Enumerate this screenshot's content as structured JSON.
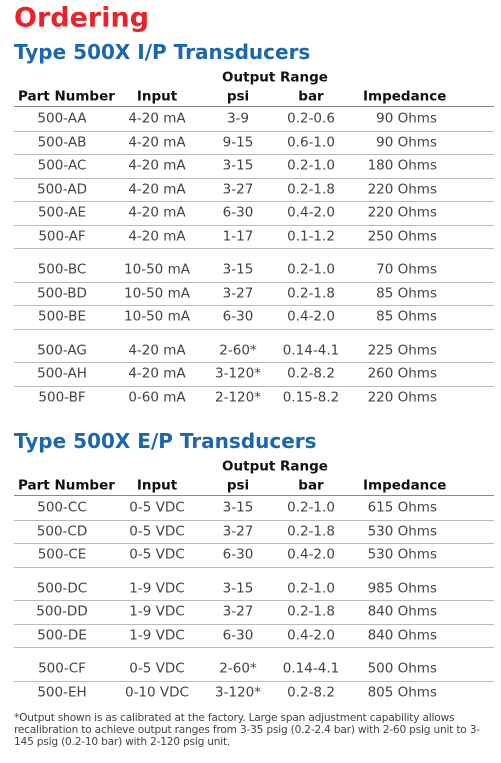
{
  "title": "Ordering",
  "sections": [
    {
      "heading": "Type 500X I/P Transducers",
      "group_header": "Output Range",
      "columns": [
        "Part Number",
        "Input",
        "psi",
        "bar",
        "Impedance"
      ],
      "groups": [
        [
          [
            "500-AA",
            "4-20 mA",
            "3-9",
            "0.2-0.6",
            "90 Ohms"
          ],
          [
            "500-AB",
            "4-20 mA",
            "9-15",
            "0.6-1.0",
            "90 Ohms"
          ],
          [
            "500-AC",
            "4-20 mA",
            "3-15",
            "0.2-1.0",
            "180 Ohms"
          ],
          [
            "500-AD",
            "4-20 mA",
            "3-27",
            "0.2-1.8",
            "220 Ohms"
          ],
          [
            "500-AE",
            "4-20 mA",
            "6-30",
            "0.4-2.0",
            "220 Ohms"
          ],
          [
            "500-AF",
            "4-20 mA",
            "1-17",
            "0.1-1.2",
            "250 Ohms"
          ]
        ],
        [
          [
            "500-BC",
            "10-50 mA",
            "3-15",
            "0.2-1.0",
            "70 Ohms"
          ],
          [
            "500-BD",
            "10-50 mA",
            "3-27",
            "0.2-1.8",
            "85 Ohms"
          ],
          [
            "500-BE",
            "10-50 mA",
            "6-30",
            "0.4-2.0",
            "85 Ohms"
          ]
        ],
        [
          [
            "500-AG",
            "4-20 mA",
            "2-60*",
            "0.14-4.1",
            "225 Ohms"
          ],
          [
            "500-AH",
            "4-20 mA",
            "3-120*",
            "0.2-8.2",
            "260 Ohms"
          ],
          [
            "500-BF",
            "0-60 mA",
            "2-120*",
            "0.15-8.2",
            "220 Ohms"
          ]
        ]
      ]
    },
    {
      "heading": "Type 500X E/P Transducers",
      "group_header": "Output Range",
      "columns": [
        "Part Number",
        "Input",
        "psi",
        "bar",
        "Impedance"
      ],
      "groups": [
        [
          [
            "500-CC",
            "0-5 VDC",
            "3-15",
            "0.2-1.0",
            "615 Ohms"
          ],
          [
            "500-CD",
            "0-5 VDC",
            "3-27",
            "0.2-1.8",
            "530 Ohms"
          ],
          [
            "500-CE",
            "0-5 VDC",
            "6-30",
            "0.4-2.0",
            "530 Ohms"
          ]
        ],
        [
          [
            "500-DC",
            "1-9 VDC",
            "3-15",
            "0.2-1.0",
            "985 Ohms"
          ],
          [
            "500-DD",
            "1-9 VDC",
            "3-27",
            "0.2-1.8",
            "840 Ohms"
          ],
          [
            "500-DE",
            "1-9 VDC",
            "6-30",
            "0.4-2.0",
            "840 Ohms"
          ]
        ],
        [
          [
            "500-CF",
            "0-5 VDC",
            "2-60*",
            "0.14-4.1",
            "500 Ohms"
          ],
          [
            "500-EH",
            "0-10 VDC",
            "3-120*",
            "0.2-8.2",
            "805 Ohms"
          ]
        ]
      ]
    }
  ],
  "footnote": "*Output shown is as calibrated at the factory. Large span adjustment capability allows recalibration to achieve output ranges from 3-35 psig (0.2-2.4 bar) with 2-60 psig unit to 3-145 psig (0.2-10 bar) with 2-120 psig unit."
}
